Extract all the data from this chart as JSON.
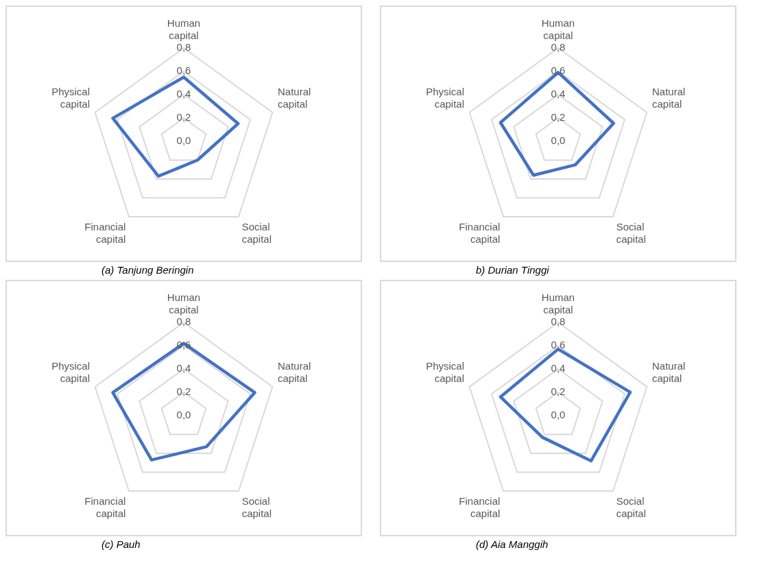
{
  "chart_data": [
    {
      "type": "radar",
      "title": "(a) Tanjung Beringin",
      "categories": [
        "Human capital",
        "Natural capital",
        "Social capital",
        "Financial capital",
        "Physical capital"
      ],
      "series": [
        {
          "color": "#4472c4",
          "values": [
            0.55,
            0.49,
            0.2,
            0.37,
            0.64
          ]
        }
      ],
      "ylim": [
        0,
        0.8
      ],
      "yticks": [
        {
          "value": 0,
          "label": "0,0"
        },
        {
          "value": 0.2,
          "label": "0,2"
        },
        {
          "value": 0.4,
          "label": "0,4"
        },
        {
          "value": 0.6,
          "label": "0,6"
        },
        {
          "value": 0.8,
          "label": "0,8"
        }
      ],
      "grid": true,
      "legend": false,
      "marker": "none"
    },
    {
      "type": "radar",
      "title": "b) Durian Tinggi",
      "categories": [
        "Human capital",
        "Natural capital",
        "Social capital",
        "Financial capital",
        "Physical capital"
      ],
      "series": [
        {
          "color": "#4472c4",
          "values": [
            0.59,
            0.5,
            0.25,
            0.36,
            0.52
          ]
        }
      ],
      "ylim": [
        0,
        0.8
      ],
      "yticks": [
        {
          "value": 0,
          "label": "0,0"
        },
        {
          "value": 0.2,
          "label": "0,2"
        },
        {
          "value": 0.4,
          "label": "0,4"
        },
        {
          "value": 0.6,
          "label": "0,6"
        },
        {
          "value": 0.8,
          "label": "0,8"
        }
      ],
      "grid": true,
      "legend": false,
      "marker": "none"
    },
    {
      "type": "radar",
      "title": "(c) Pauh",
      "categories": [
        "Human capital",
        "Natural capital",
        "Social capital",
        "Financial capital",
        "Physical capital"
      ],
      "series": [
        {
          "color": "#4472c4",
          "values": [
            0.62,
            0.64,
            0.33,
            0.47,
            0.64
          ]
        }
      ],
      "ylim": [
        0,
        0.8
      ],
      "yticks": [
        {
          "value": 0,
          "label": "0,0"
        },
        {
          "value": 0.2,
          "label": "0,2"
        },
        {
          "value": 0.4,
          "label": "0,4"
        },
        {
          "value": 0.6,
          "label": "0,6"
        },
        {
          "value": 0.8,
          "label": "0,8"
        }
      ],
      "grid": true,
      "legend": false,
      "marker": "none"
    },
    {
      "type": "radar",
      "title": "(d) Aia Manggih",
      "categories": [
        "Human capital",
        "Natural capital",
        "Social capital",
        "Financial capital",
        "Physical capital"
      ],
      "series": [
        {
          "color": "#4472c4",
          "values": [
            0.57,
            0.65,
            0.48,
            0.23,
            0.52
          ]
        }
      ],
      "ylim": [
        0,
        0.8
      ],
      "yticks": [
        {
          "value": 0,
          "label": "0,0"
        },
        {
          "value": 0.2,
          "label": "0,2"
        },
        {
          "value": 0.4,
          "label": "0,4"
        },
        {
          "value": 0.6,
          "label": "0,6"
        },
        {
          "value": 0.8,
          "label": "0,8"
        }
      ],
      "grid": true,
      "legend": false,
      "marker": "none"
    }
  ]
}
